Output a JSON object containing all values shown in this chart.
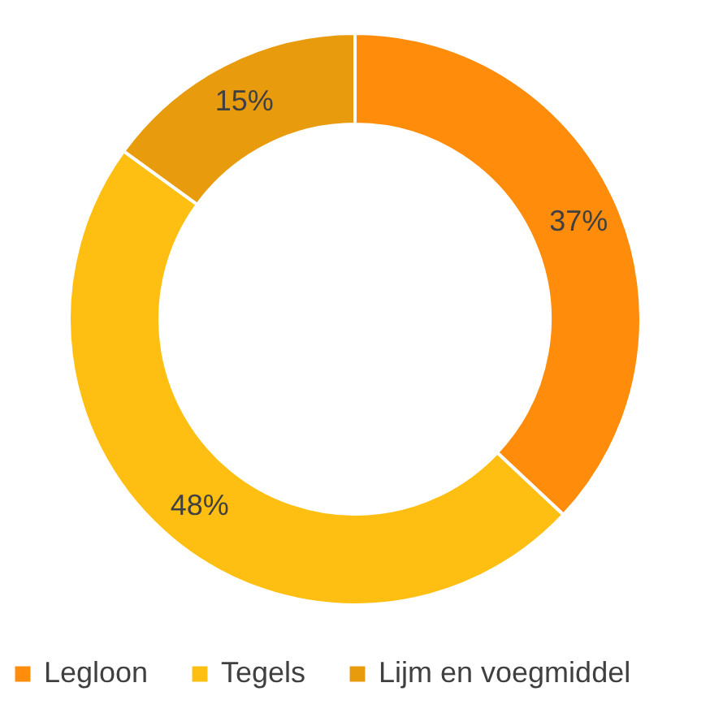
{
  "chart_data": {
    "type": "donut",
    "categories": [
      "Legloon",
      "Tegels",
      "Lijm en voegmiddel"
    ],
    "values": [
      37,
      48,
      15
    ],
    "colors": [
      "#ff8c0a",
      "#ffbf12",
      "#e89b0d"
    ],
    "value_labels": [
      "37%",
      "48%",
      "15%"
    ],
    "legend": "bottom"
  }
}
